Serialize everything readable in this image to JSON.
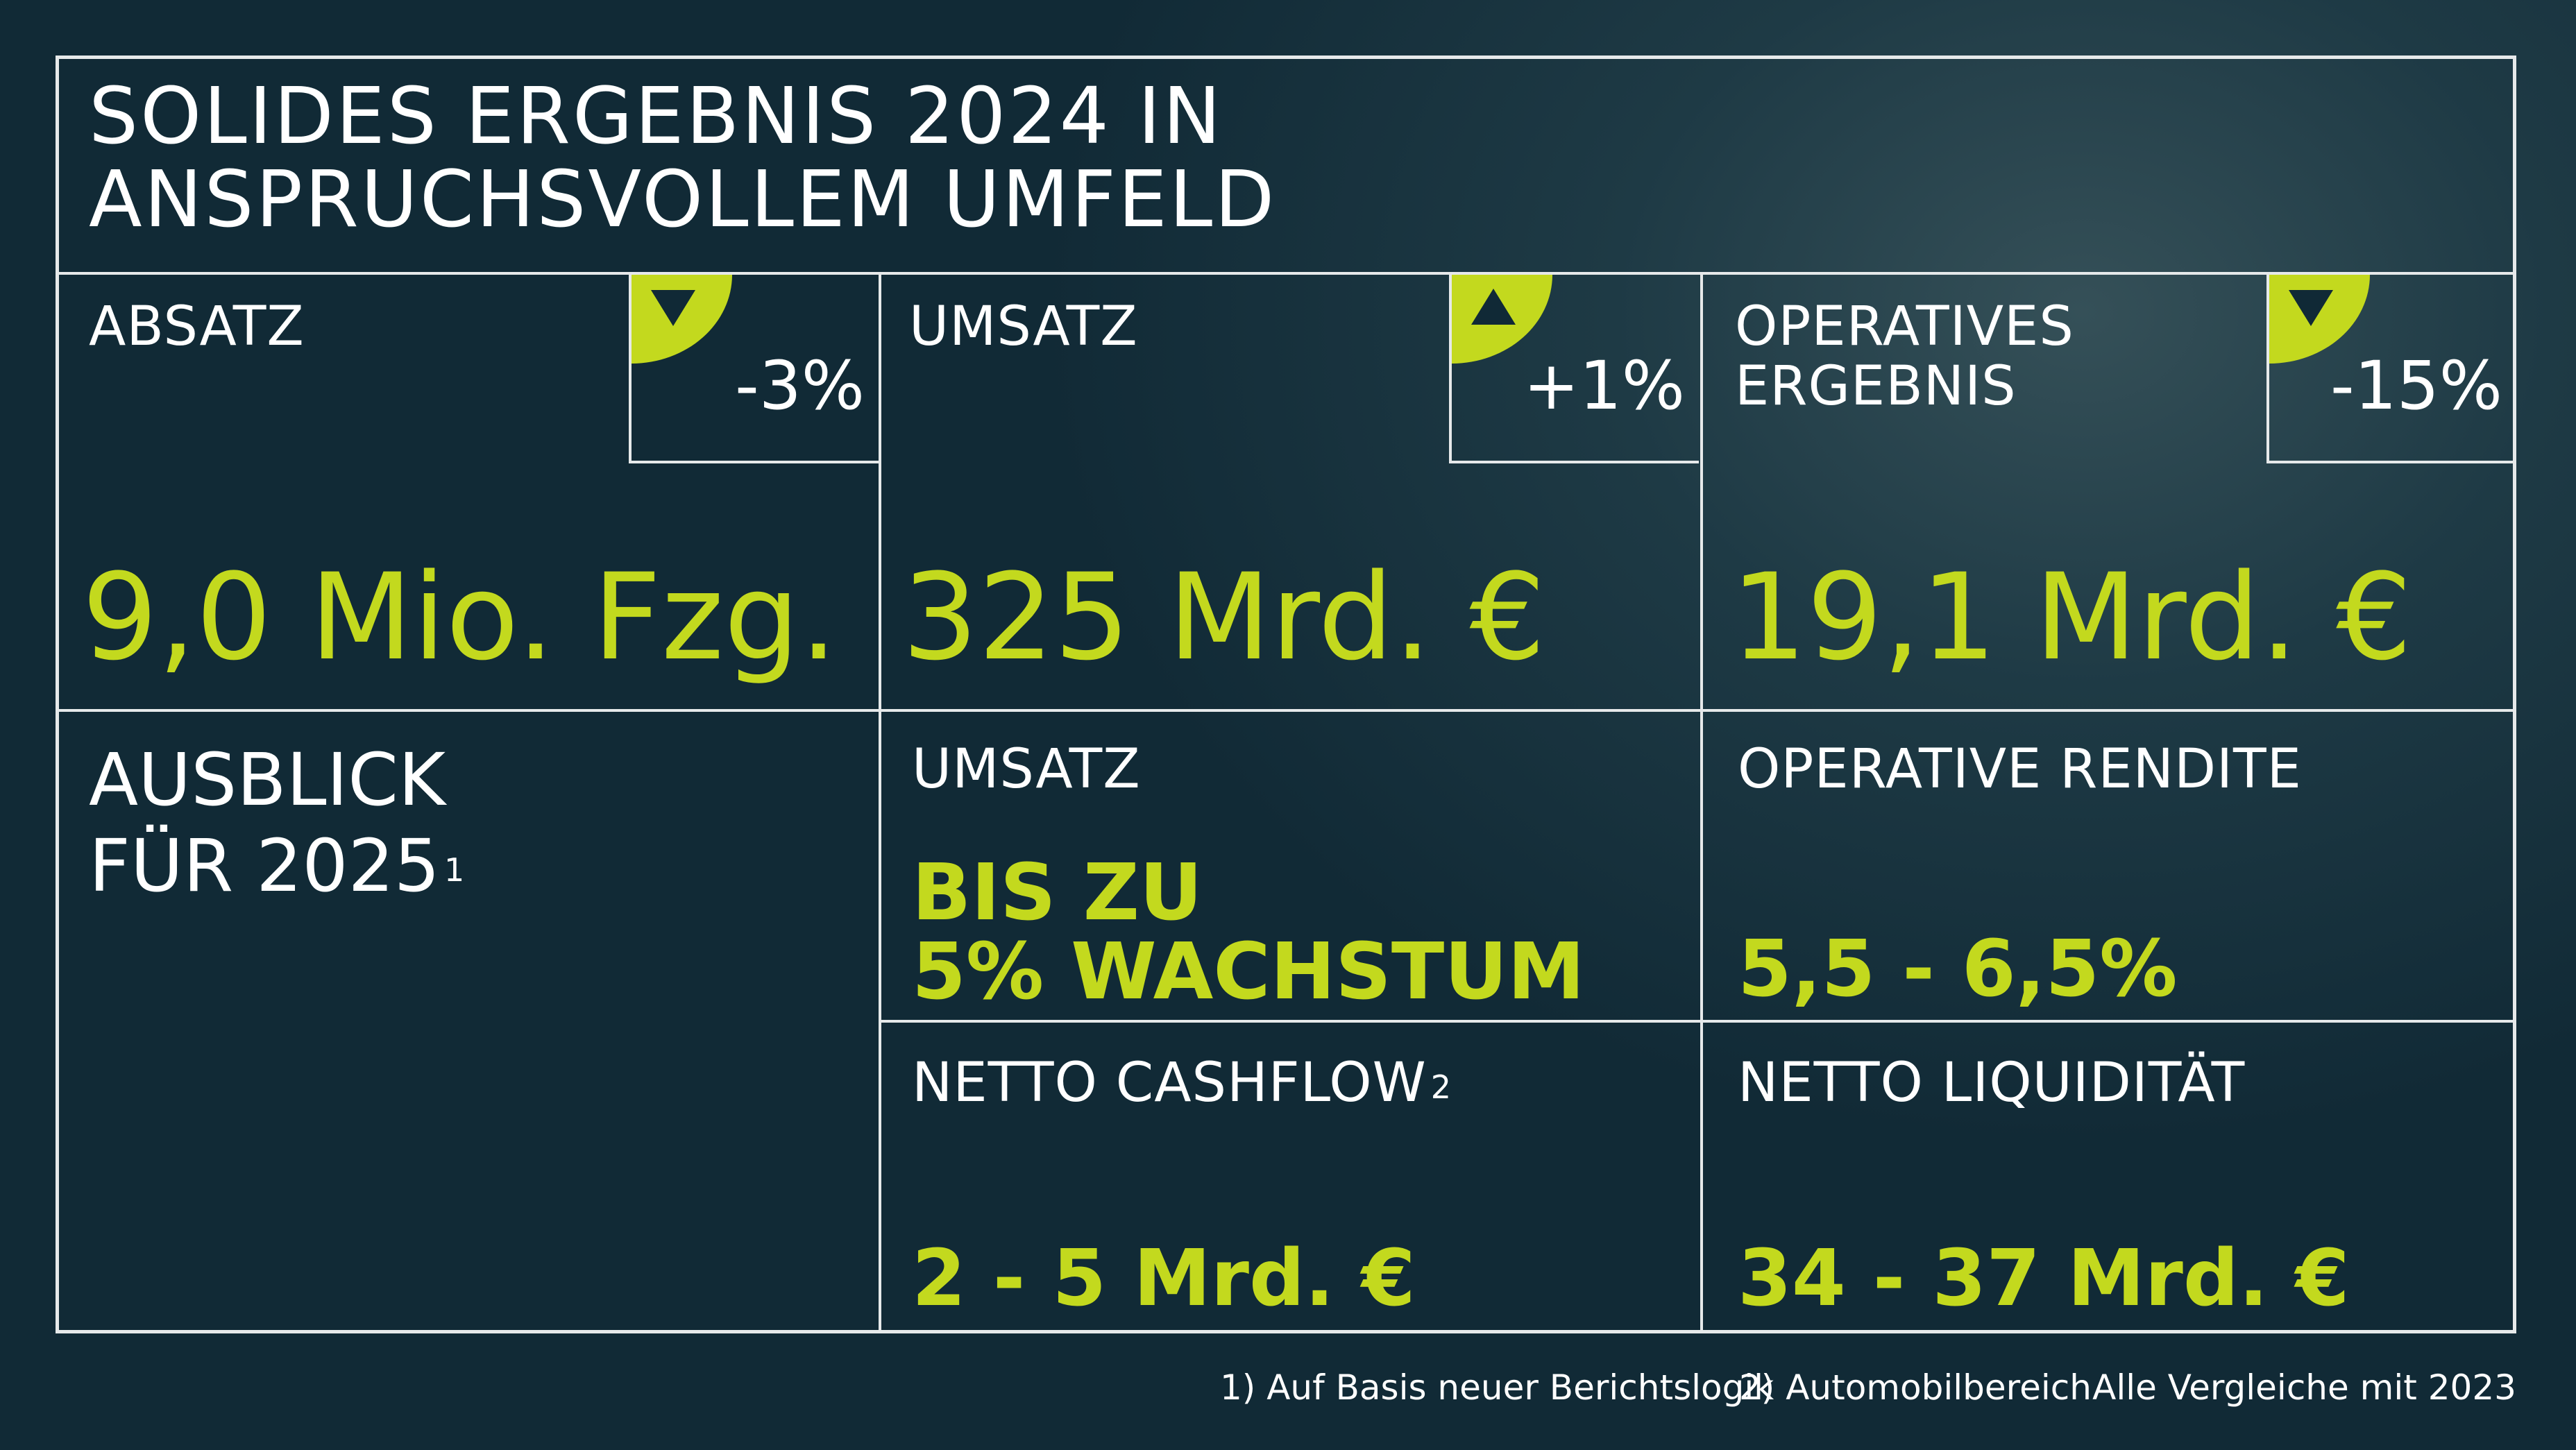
{
  "title_line1": "SOLIDES ERGEBNIS 2024 IN",
  "title_line2": "ANSPRUCHSVOLLEM UMFELD",
  "kpis": [
    {
      "label_line1": "ABSATZ",
      "label_line2": "",
      "change": "-3%",
      "direction": "down",
      "value": "9,0 Mio. Fzg."
    },
    {
      "label_line1": "UMSATZ",
      "label_line2": "",
      "change": "+1%",
      "direction": "up",
      "value": "325 Mrd. €"
    },
    {
      "label_line1": "OPERATIVES",
      "label_line2": "ERGEBNIS",
      "change": "-15%",
      "direction": "down",
      "value": "19,1 Mrd. €"
    }
  ],
  "outlook": {
    "heading_line1": "AUSBLICK",
    "heading_line2": "FÜR 2025",
    "heading_footnote": "1",
    "items": [
      {
        "label": "UMSATZ",
        "footnote": "",
        "value_line1": "BIS ZU",
        "value_line2": "5% WACHSTUM"
      },
      {
        "label": "OPERATIVE RENDITE",
        "footnote": "",
        "value_line1": "",
        "value_line2": "5,5 - 6,5%"
      },
      {
        "label": "NETTO CASHFLOW",
        "footnote": "2",
        "value_line1": "",
        "value_line2": "2 - 5 Mrd. €"
      },
      {
        "label": "NETTO LIQUIDITÄT",
        "footnote": "",
        "value_line1": "",
        "value_line2": "34 - 37 Mrd. €"
      }
    ]
  },
  "footnotes": {
    "note1": "1)  Auf Basis neuer Berichtslogik",
    "note2": "2) Automobilbereich",
    "comparison": "Alle Vergleiche mit 2023"
  },
  "colors": {
    "accent": "#c3d91e",
    "background": "#112a36",
    "border": "#e6e9ea"
  },
  "icons": {
    "down": "triangle-down-icon",
    "up": "triangle-up-icon"
  }
}
